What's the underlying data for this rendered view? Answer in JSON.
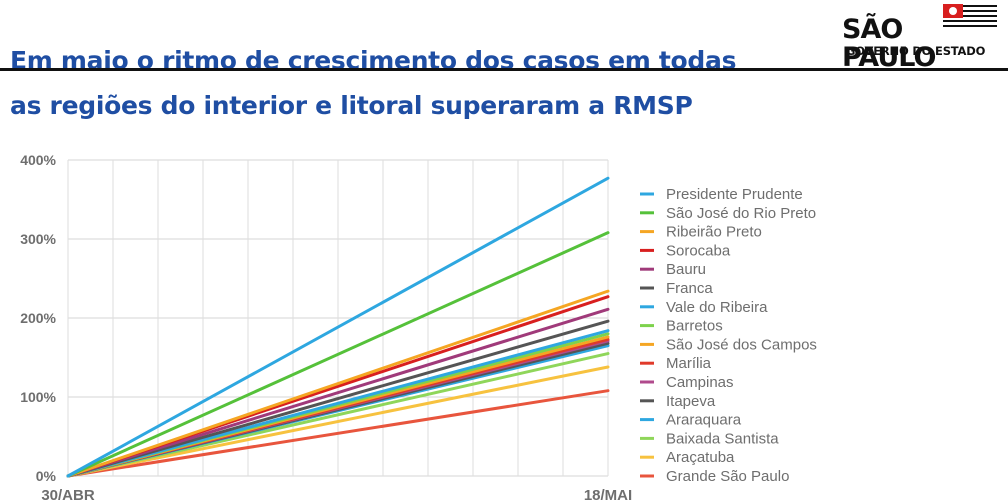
{
  "header": {
    "title_line1": "Em maio o ritmo de crescimento dos casos em todas",
    "title_line2": "as regiões do interior e litoral superaram a RMSP",
    "title_color": "#1f4ea3"
  },
  "logo": {
    "name": "SÃO PAULO",
    "subtitle": "GOVERNO DO ESTADO"
  },
  "chart_data": {
    "type": "line",
    "title": "",
    "xlabel": "",
    "ylabel": "",
    "x": [
      "30/ABR",
      "18/MAI"
    ],
    "ylim": [
      0,
      400
    ],
    "yticks": [
      0,
      100,
      200,
      300,
      400
    ],
    "ytick_labels": [
      "0%",
      "100%",
      "200%",
      "300%",
      "400%"
    ],
    "grid": true,
    "legend_position": "right",
    "series": [
      {
        "name": "Presidente Prudente",
        "color": "#2ea7e0",
        "values": [
          0,
          377
        ]
      },
      {
        "name": "São José do Rio Preto",
        "color": "#55c13a",
        "values": [
          0,
          308
        ]
      },
      {
        "name": "Ribeirão Preto",
        "color": "#f5a623",
        "values": [
          0,
          234
        ]
      },
      {
        "name": "Sorocaba",
        "color": "#d81f1f",
        "values": [
          0,
          227
        ]
      },
      {
        "name": "Bauru",
        "color": "#a03a7a",
        "values": [
          0,
          211
        ]
      },
      {
        "name": "Franca",
        "color": "#555555",
        "values": [
          0,
          196
        ]
      },
      {
        "name": "Vale do Ribeira",
        "color": "#2ea7e0",
        "values": [
          0,
          184
        ]
      },
      {
        "name": "Barretos",
        "color": "#7dd24c",
        "values": [
          0,
          180
        ]
      },
      {
        "name": "São José dos Campos",
        "color": "#f5a623",
        "values": [
          0,
          176
        ]
      },
      {
        "name": "Marília",
        "color": "#e03a2a",
        "values": [
          0,
          173
        ]
      },
      {
        "name": "Campinas",
        "color": "#b04a8c",
        "values": [
          0,
          171
        ]
      },
      {
        "name": "Itapeva",
        "color": "#555555",
        "values": [
          0,
          168
        ]
      },
      {
        "name": "Araraquara",
        "color": "#2ea7e0",
        "values": [
          0,
          165
        ]
      },
      {
        "name": "Baixada Santista",
        "color": "#8fd65a",
        "values": [
          0,
          155
        ]
      },
      {
        "name": "Araçatuba",
        "color": "#f7c23f",
        "values": [
          0,
          138
        ]
      },
      {
        "name": "Grande São Paulo",
        "color": "#e8553d",
        "values": [
          0,
          108
        ]
      }
    ]
  }
}
